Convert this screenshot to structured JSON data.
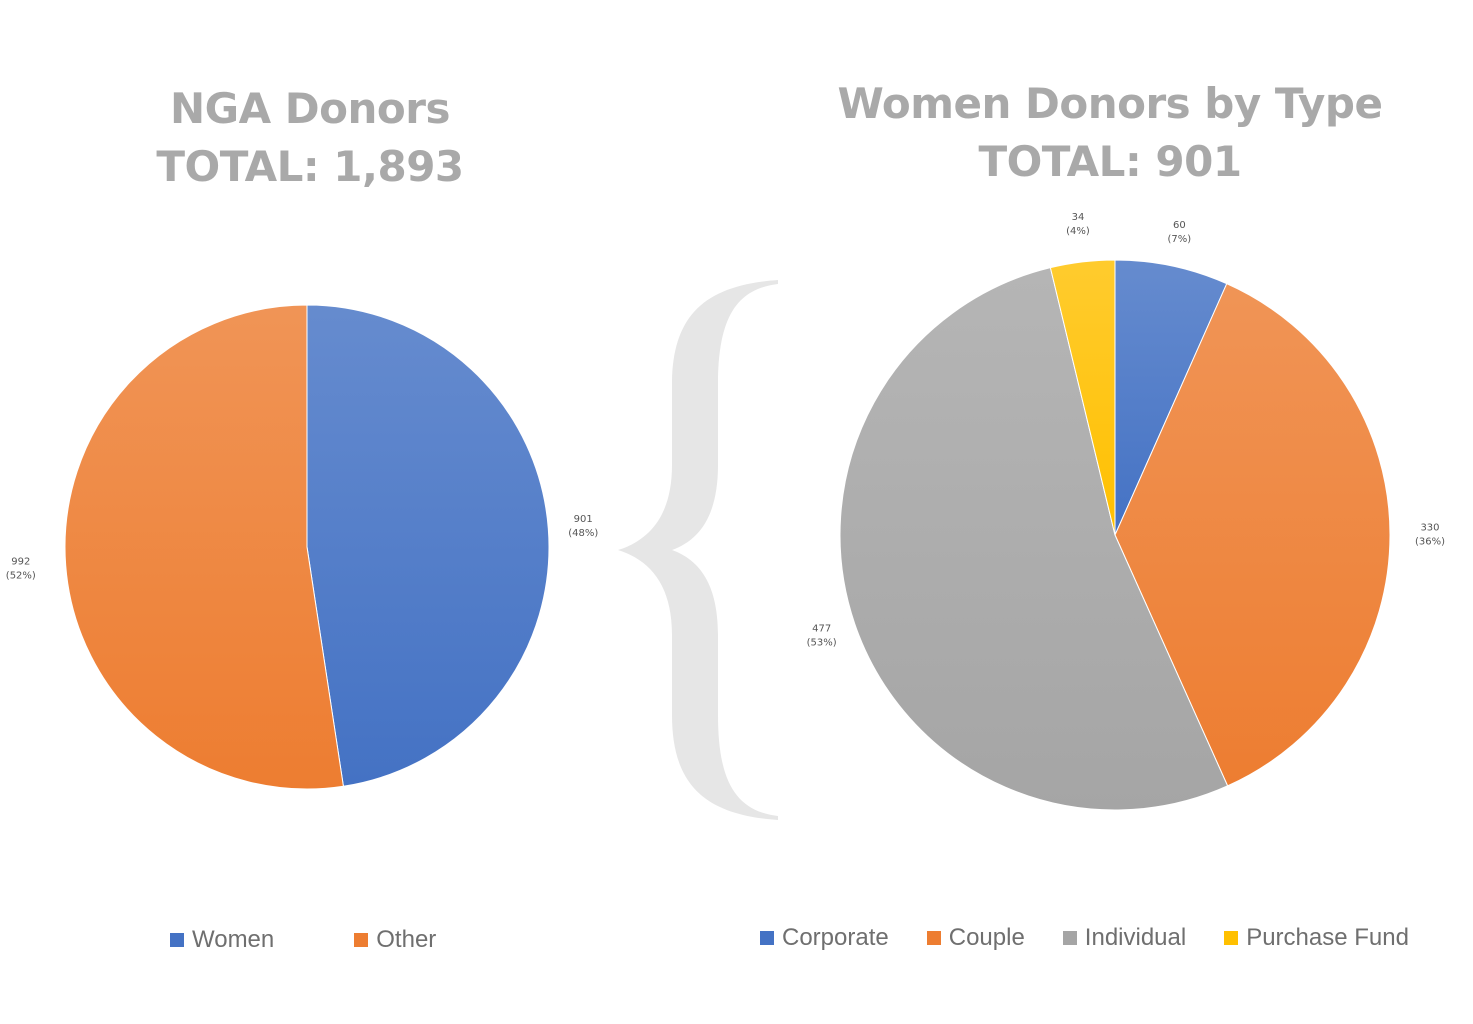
{
  "colors": {
    "title": "#a9a9a9",
    "blue": "#4472c4",
    "orange": "#ed7d31",
    "gray": "#a5a5a5",
    "yellow": "#ffc000",
    "brace": "#e6e6e6"
  },
  "chart_data": [
    {
      "type": "pie",
      "title_lines": [
        "NGA Donors",
        "TOTAL: 1,893"
      ],
      "categories": [
        "Women",
        "Other"
      ],
      "values": [
        901,
        992
      ],
      "percent_labels": [
        "(48%)",
        "(52%)"
      ],
      "legend_position": "bottom"
    },
    {
      "type": "pie",
      "title_lines": [
        "Women Donors by Type",
        "TOTAL: 901"
      ],
      "categories": [
        "Corporate",
        "Couple",
        "Individual",
        "Purchase Fund"
      ],
      "values": [
        60,
        330,
        477,
        34
      ],
      "percent_labels": [
        "(7%)",
        "(36%)",
        "(53%)",
        "(4%)"
      ],
      "legend_position": "bottom"
    }
  ]
}
